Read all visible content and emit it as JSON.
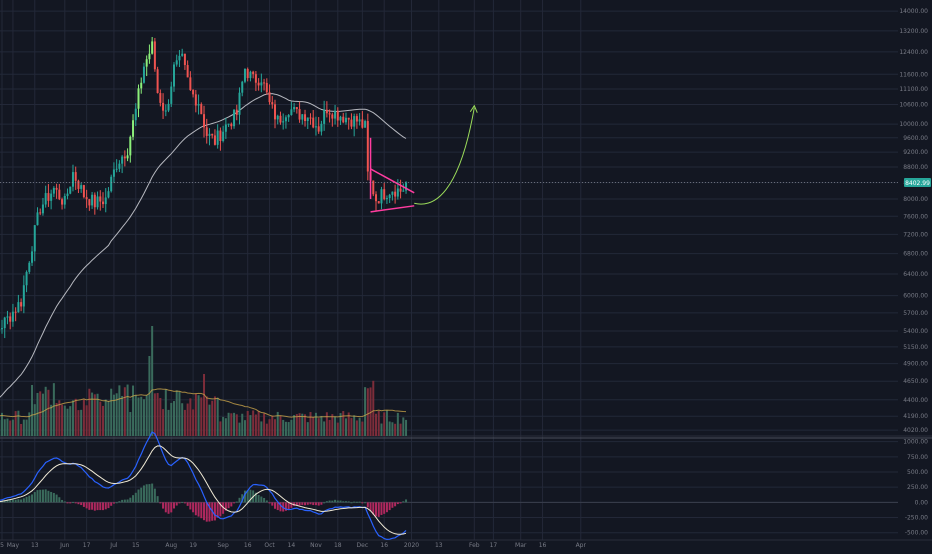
{
  "theme": {
    "background": "#131722",
    "grid": "#232838",
    "axis_text": "#787b86",
    "bull": "#26a69a",
    "bull_bright": "#8cf07a",
    "bear": "#ef5350",
    "ma_line": "#b7b9c0",
    "volume_bull": "#3a6b5c",
    "volume_bear": "#7d2d3a",
    "macd_line": "#2962ff",
    "signal_line": "#f0ead6",
    "histogram_pos": "#3a6b5c",
    "histogram_neg": "#b0285e",
    "pattern": "#ff3ca0",
    "projection": "#9bdc5a",
    "last_price_bg": "#26a69a"
  },
  "chart_data": [
    {
      "type": "candlestick",
      "panel": "price",
      "x_labels": [
        "5",
        "May",
        "13",
        "Jun",
        "17",
        "Jul",
        "15",
        "Aug",
        "19",
        "Sep",
        "16",
        "Oct",
        "14",
        "Nov",
        "18",
        "Dec",
        "16",
        "2020",
        "13",
        "Feb",
        "17",
        "Mar",
        "16",
        "Apr"
      ],
      "y_ticks": [
        "14000.00",
        "13200.00",
        "12400.00",
        "11600.00",
        "11100.00",
        "10600.00",
        "10000.00",
        "9600.00",
        "9200.00",
        "8800.00",
        "8400.00",
        "8000.00",
        "7600.00",
        "7200.00",
        "6800.00",
        "6400.00",
        "6000.00",
        "5700.00",
        "5400.00",
        "5150.00",
        "4900.00",
        "4650.00",
        "4400.00",
        "4190.00",
        "4020.00"
      ],
      "last_price": "8402.99",
      "last_price_value": 8402.99,
      "y_scale": "log",
      "ylim": [
        3950,
        14300
      ],
      "moving_average": "slow MA overlay",
      "annotations": [
        "symmetrical triangle (pink)",
        "projected breakout arrow (green)"
      ]
    },
    {
      "type": "bar",
      "panel": "volume",
      "overlay": "volume moving average"
    },
    {
      "type": "line",
      "panel": "macd",
      "series": [
        {
          "values": "macd"
        },
        {
          "values": "signal"
        }
      ],
      "histogram": true,
      "y_ticks": [
        "1000.00",
        "750.00",
        "500.00",
        "250.00",
        "0.00",
        "-250.00",
        "-500.00"
      ],
      "ylim": [
        -620,
        1060
      ]
    }
  ]
}
